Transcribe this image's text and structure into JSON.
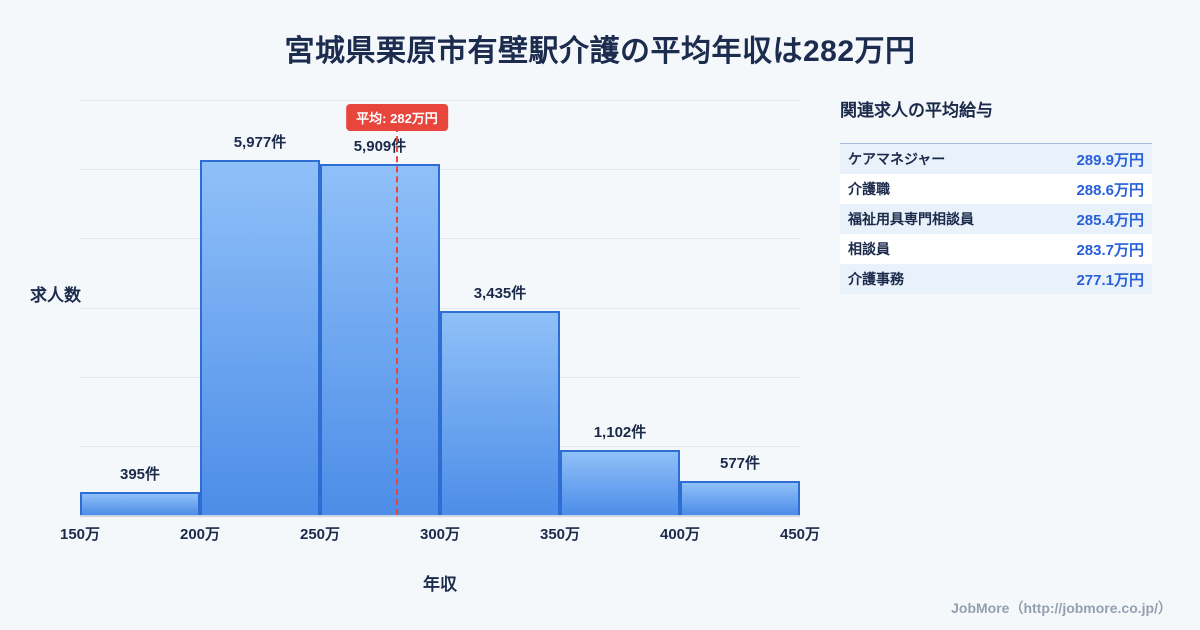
{
  "page": {
    "title": "宮城県栗原市有壁駅介護の平均年収は282万円",
    "footer": "JobMore（http://jobmore.co.jp/）"
  },
  "chart_data": {
    "type": "bar",
    "title": "宮城県栗原市有壁駅介護の平均年収は282万円",
    "xlabel": "年収",
    "ylabel": "求人数",
    "x_range": [
      150,
      450
    ],
    "bin_edges_labels": [
      "150万",
      "200万",
      "250万",
      "300万",
      "350万",
      "400万",
      "450万"
    ],
    "values": [
      395,
      5977,
      5909,
      3435,
      1102,
      577
    ],
    "value_labels": [
      "395件",
      "5,977件",
      "5,909件",
      "3,435件",
      "1,102件",
      "577件"
    ],
    "average": {
      "value": 282,
      "label": "平均: 282万円"
    },
    "ylim": [
      0,
      6200
    ],
    "grid": true,
    "legend": "none",
    "colors": {
      "bar_fill_top": "#8fc0f8",
      "bar_fill_bottom": "#4d8de8",
      "bar_border": "#2e6ed2",
      "average_line": "#e8453c",
      "grid": "#e3e9f1",
      "text": "#1b2a4a"
    }
  },
  "side_panel": {
    "heading": "関連求人の平均給与",
    "rows": [
      {
        "label": "ケアマネジャー",
        "value": "289.9万円"
      },
      {
        "label": "介護職",
        "value": "288.6万円"
      },
      {
        "label": "福祉用具専門相談員",
        "value": "285.4万円"
      },
      {
        "label": "相談員",
        "value": "283.7万円"
      },
      {
        "label": "介護事務",
        "value": "277.1万円"
      }
    ]
  }
}
